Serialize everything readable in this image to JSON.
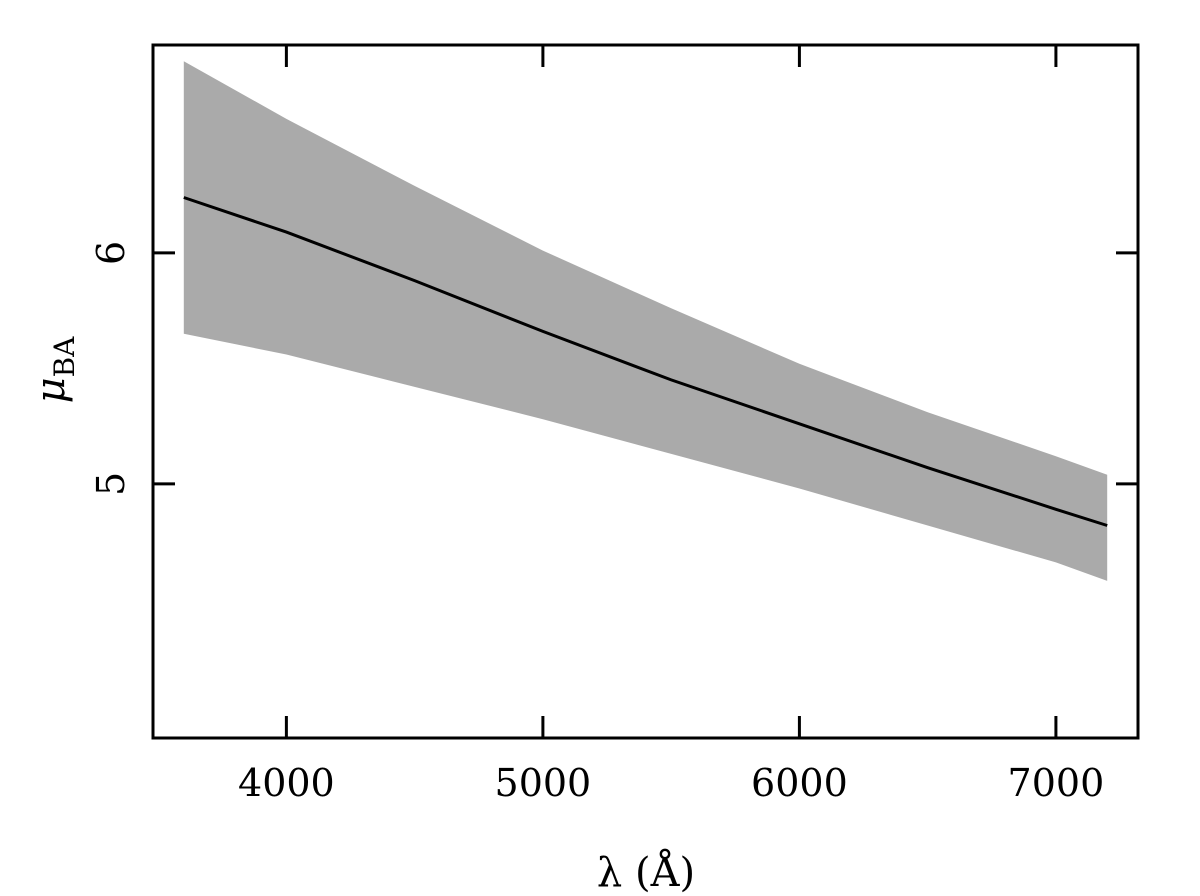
{
  "chart_data": {
    "type": "area",
    "title": "",
    "xlabel": "λ (Å)",
    "ylabel": {
      "symbol": "μ",
      "subscript": "BA"
    },
    "xlim": [
      3480,
      7320
    ],
    "ylim": [
      3.9,
      6.9
    ],
    "xticks": [
      4000,
      5000,
      6000,
      7000
    ],
    "xtick_labels": [
      "4000",
      "5000",
      "6000",
      "7000"
    ],
    "yticks": [
      5,
      6
    ],
    "ytick_labels": [
      "5",
      "6"
    ],
    "grid": false,
    "series": [
      {
        "kind": "line",
        "color": "#000000",
        "x": [
          3600,
          4000,
          4500,
          5000,
          5500,
          6000,
          6500,
          7000,
          7200
        ],
        "y": [
          6.24,
          6.09,
          5.88,
          5.66,
          5.45,
          5.26,
          5.07,
          4.89,
          4.82
        ]
      },
      {
        "kind": "band",
        "color": "#aaaaaa",
        "x": [
          3600,
          4000,
          4500,
          5000,
          5500,
          6000,
          6500,
          7000,
          7200
        ],
        "upper": [
          6.83,
          6.58,
          6.29,
          6.01,
          5.76,
          5.52,
          5.31,
          5.12,
          5.04
        ],
        "lower": [
          5.65,
          5.56,
          5.42,
          5.28,
          5.13,
          4.98,
          4.82,
          4.66,
          4.58
        ]
      }
    ]
  }
}
